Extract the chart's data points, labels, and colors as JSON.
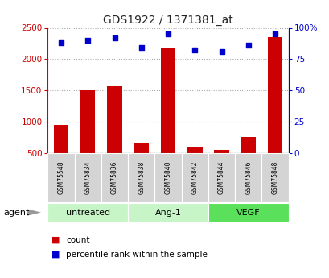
{
  "title": "GDS1922 / 1371381_at",
  "samples": [
    "GSM75548",
    "GSM75834",
    "GSM75836",
    "GSM75838",
    "GSM75840",
    "GSM75842",
    "GSM75844",
    "GSM75846",
    "GSM75848"
  ],
  "counts": [
    950,
    1500,
    1560,
    670,
    2190,
    600,
    550,
    750,
    2350
  ],
  "percentiles": [
    88,
    90,
    92,
    84,
    95,
    82,
    81,
    86,
    95
  ],
  "ylim_left": [
    500,
    2500
  ],
  "ylim_right": [
    0,
    100
  ],
  "yticks_left": [
    500,
    1000,
    1500,
    2000,
    2500
  ],
  "yticks_right": [
    0,
    25,
    50,
    75,
    100
  ],
  "groups": [
    {
      "label": "untreated",
      "start": 0,
      "end": 3,
      "color": "#c8f5c8"
    },
    {
      "label": "Ang-1",
      "start": 3,
      "end": 6,
      "color": "#c8f5c8"
    },
    {
      "label": "VEGF",
      "start": 6,
      "end": 9,
      "color": "#5ae05a"
    }
  ],
  "bar_color": "#cc0000",
  "dot_color": "#0000cc",
  "bar_width": 0.55,
  "grid_color": "#aaaaaa",
  "plot_bg": "#ffffff",
  "legend_count_label": "count",
  "legend_pct_label": "percentile rank within the sample",
  "agent_label": "agent"
}
